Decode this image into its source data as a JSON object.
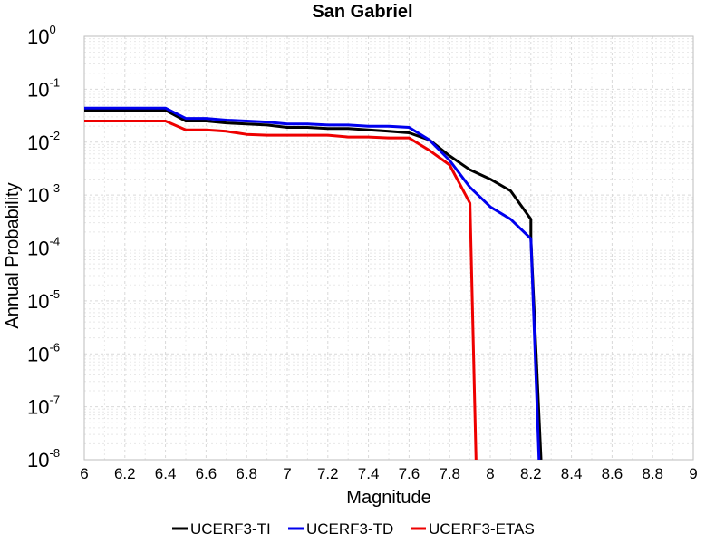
{
  "chart_data": {
    "type": "line",
    "title": "San Gabriel",
    "xlabel": "Magnitude",
    "ylabel": "Annual Probability",
    "xlim": [
      6,
      9
    ],
    "ylim": [
      1e-08,
      1
    ],
    "yscale": "log",
    "grid": true,
    "legend_position": "bottom",
    "x_ticks": [
      "6",
      "6.2",
      "6.4",
      "6.6",
      "6.8",
      "7",
      "7.2",
      "7.4",
      "7.6",
      "7.8",
      "8",
      "8.2",
      "8.4",
      "8.6",
      "8.8",
      "9"
    ],
    "y_ticks": [
      {
        "base": "10",
        "exp": "0"
      },
      {
        "base": "10",
        "exp": "-1"
      },
      {
        "base": "10",
        "exp": "-2"
      },
      {
        "base": "10",
        "exp": "-3"
      },
      {
        "base": "10",
        "exp": "-4"
      },
      {
        "base": "10",
        "exp": "-5"
      },
      {
        "base": "10",
        "exp": "-6"
      },
      {
        "base": "10",
        "exp": "-7"
      },
      {
        "base": "10",
        "exp": "-8"
      }
    ],
    "series": [
      {
        "name": "UCERF3-TI",
        "color": "#000000",
        "x": [
          6.0,
          6.4,
          6.5,
          6.6,
          6.7,
          6.8,
          6.9,
          7.0,
          7.1,
          7.2,
          7.3,
          7.4,
          7.5,
          7.6,
          7.7,
          7.8,
          7.9,
          8.0,
          8.1,
          8.2,
          8.2,
          8.25
        ],
        "y": [
          0.04,
          0.04,
          0.025,
          0.025,
          0.023,
          0.022,
          0.021,
          0.019,
          0.019,
          0.018,
          0.018,
          0.017,
          0.016,
          0.015,
          0.011,
          0.0055,
          0.003,
          0.002,
          0.0012,
          0.00035,
          0.00015,
          1e-08
        ]
      },
      {
        "name": "UCERF3-TD",
        "color": "#0000ee",
        "x": [
          6.0,
          6.4,
          6.5,
          6.6,
          6.7,
          6.8,
          6.9,
          7.0,
          7.1,
          7.2,
          7.3,
          7.4,
          7.5,
          7.6,
          7.7,
          7.8,
          7.9,
          8.0,
          8.1,
          8.2,
          8.24
        ],
        "y": [
          0.044,
          0.044,
          0.028,
          0.028,
          0.026,
          0.025,
          0.024,
          0.022,
          0.022,
          0.021,
          0.021,
          0.02,
          0.02,
          0.019,
          0.011,
          0.0045,
          0.0014,
          0.0006,
          0.00035,
          0.00015,
          1e-08
        ]
      },
      {
        "name": "UCERF3-ETAS",
        "color": "#ee0000",
        "x": [
          6.0,
          6.4,
          6.5,
          6.6,
          6.7,
          6.8,
          6.9,
          7.0,
          7.1,
          7.2,
          7.3,
          7.4,
          7.5,
          7.6,
          7.7,
          7.8,
          7.9,
          7.93
        ],
        "y": [
          0.025,
          0.025,
          0.017,
          0.017,
          0.016,
          0.014,
          0.0135,
          0.0135,
          0.0135,
          0.0135,
          0.0125,
          0.0125,
          0.012,
          0.012,
          0.007,
          0.0037,
          0.0007,
          1e-08
        ]
      }
    ]
  }
}
